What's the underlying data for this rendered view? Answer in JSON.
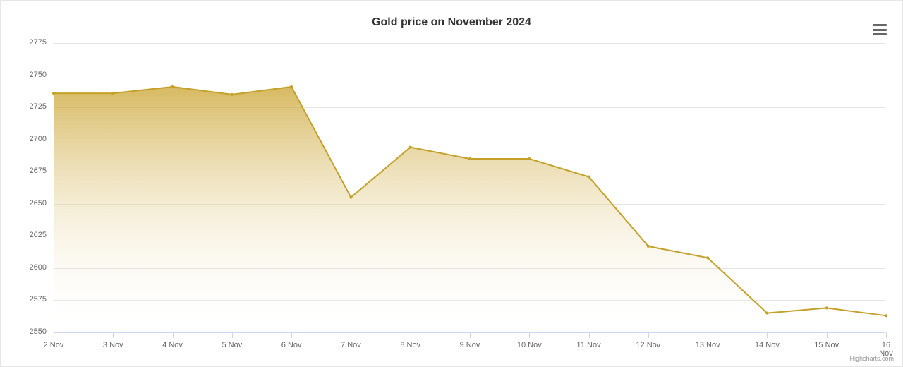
{
  "chart": {
    "type": "area",
    "title": "Gold price on November 2024",
    "title_fontsize": 16,
    "title_color": "#333333",
    "background_color": "#ffffff",
    "plot_background": "#ffffff",
    "grid_color": "#e6e6e6",
    "axis_line_color": "#ccd6eb",
    "label_color": "#666666",
    "label_fontsize": 11,
    "credits_text": "Highcharts.com",
    "credits_fontsize": 9,
    "credits_color": "#999999",
    "series": {
      "name": "Gold price",
      "line_color": "#c5a029",
      "line_width": 2,
      "marker_color": "#c5a029",
      "marker_size": 4,
      "fill_gradient_top": "#c9a22c",
      "fill_gradient_bottom": "#ffffff",
      "fill_opacity_top": 0.75,
      "fill_opacity_bottom": 0.0,
      "categories": [
        "2 Nov",
        "3 Nov",
        "4 Nov",
        "5 Nov",
        "6 Nov",
        "7 Nov",
        "8 Nov",
        "9 Nov",
        "10 Nov",
        "11 Nov",
        "12 Nov",
        "13 Nov",
        "14 Nov",
        "15 Nov",
        "16 Nov"
      ],
      "values": [
        2736,
        2736,
        2741,
        2735,
        2741,
        2655,
        2694,
        2685,
        2685,
        2671,
        2617,
        2608,
        2565,
        2569,
        2563
      ]
    },
    "yaxis": {
      "min": 2550,
      "max": 2775,
      "tick_step": 25,
      "ticks": [
        2550,
        2575,
        2600,
        2625,
        2650,
        2675,
        2700,
        2725,
        2750,
        2775
      ]
    },
    "xaxis": {
      "type": "category"
    }
  }
}
